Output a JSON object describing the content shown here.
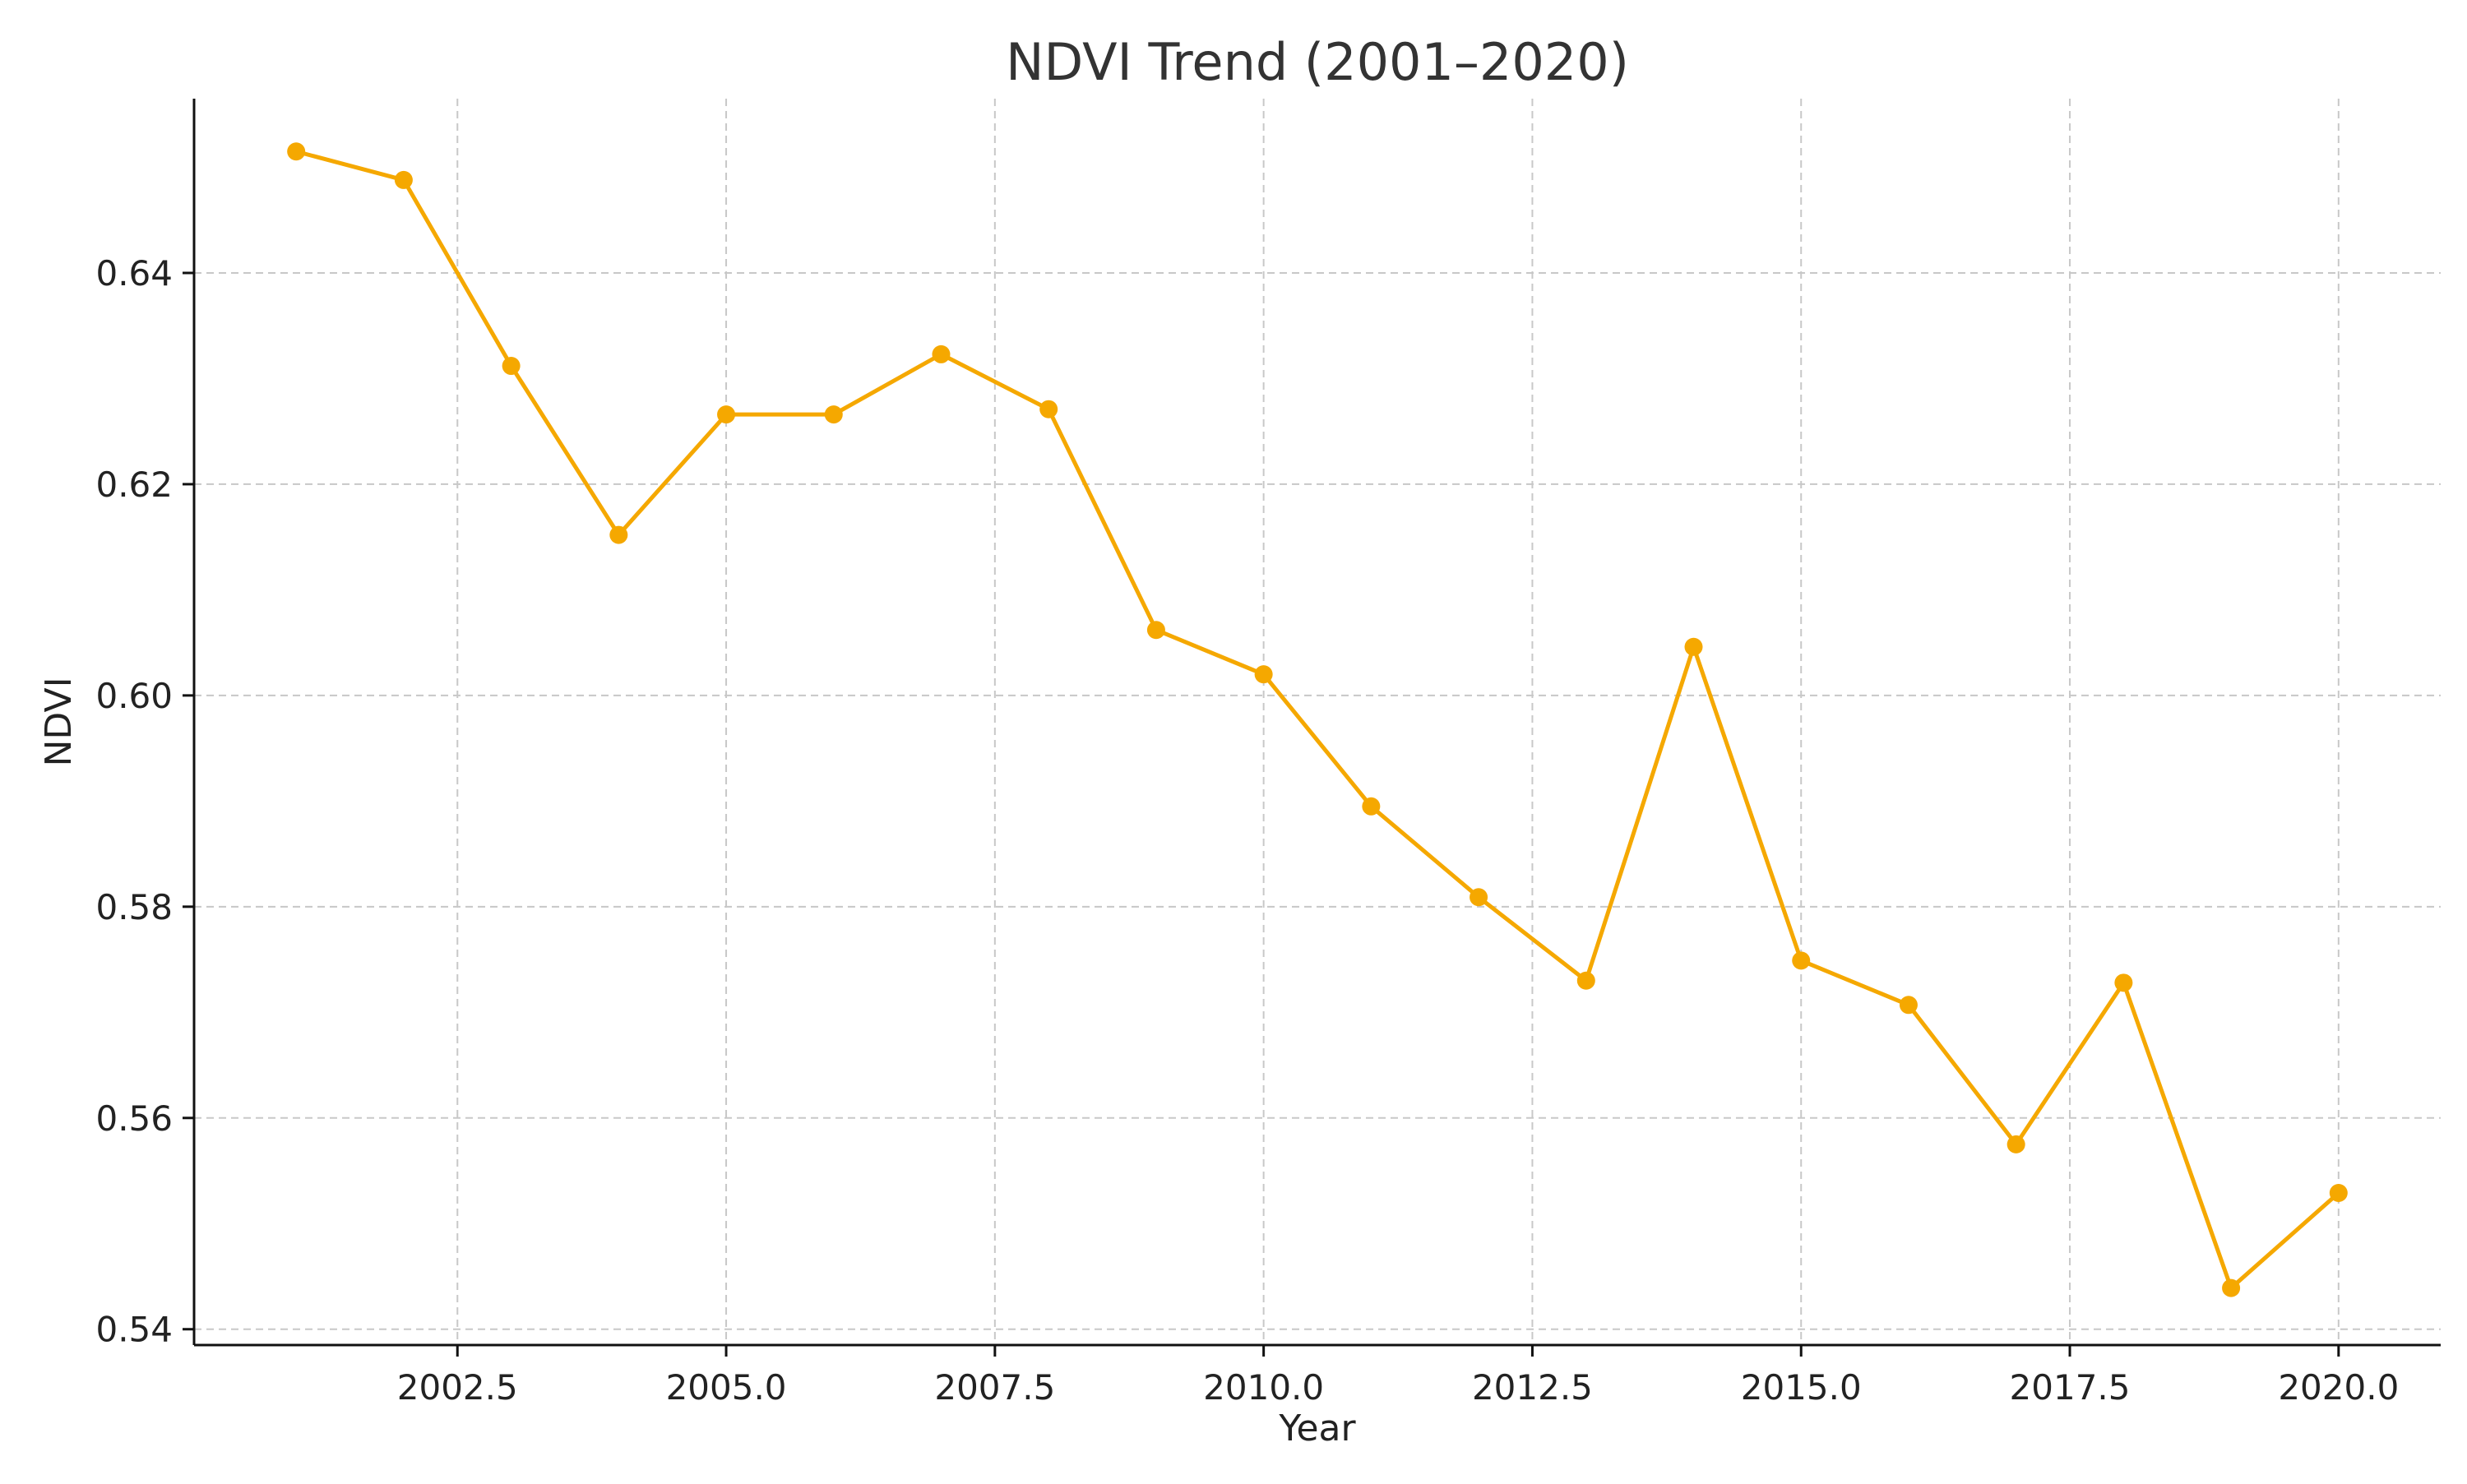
{
  "chart_data": {
    "type": "line",
    "title": "NDVI Trend (2001–2020)",
    "xlabel": "Year",
    "ylabel": "NDVI",
    "xlim": [
      2000.05,
      2020.95
    ],
    "ylim": [
      0.5385,
      0.6565
    ],
    "x_ticks": [
      2002.5,
      2005.0,
      2007.5,
      2010.0,
      2012.5,
      2015.0,
      2017.5,
      2020.0
    ],
    "x_tick_labels": [
      "2002.5",
      "2005.0",
      "2007.5",
      "2010.0",
      "2012.5",
      "2015.0",
      "2017.5",
      "2020.0"
    ],
    "y_ticks": [
      0.54,
      0.56,
      0.58,
      0.6,
      0.62,
      0.64
    ],
    "y_tick_labels": [
      "0.54",
      "0.56",
      "0.58",
      "0.60",
      "0.62",
      "0.64"
    ],
    "grid": true,
    "line_color": "#f5a800",
    "series": [
      {
        "x": [
          2001,
          2002,
          2003,
          2004,
          2005,
          2006,
          2007,
          2008,
          2009,
          2010,
          2011,
          2012,
          2013,
          2014,
          2015,
          2016,
          2017,
          2018,
          2019,
          2020
        ],
        "values": [
          0.6515,
          0.6488,
          0.6312,
          0.6152,
          0.6266,
          0.6266,
          0.6323,
          0.6271,
          0.6062,
          0.602,
          0.5895,
          0.5809,
          0.573,
          0.6046,
          0.5749,
          0.5707,
          0.5575,
          0.5728,
          0.5439,
          0.5529
        ]
      }
    ]
  }
}
